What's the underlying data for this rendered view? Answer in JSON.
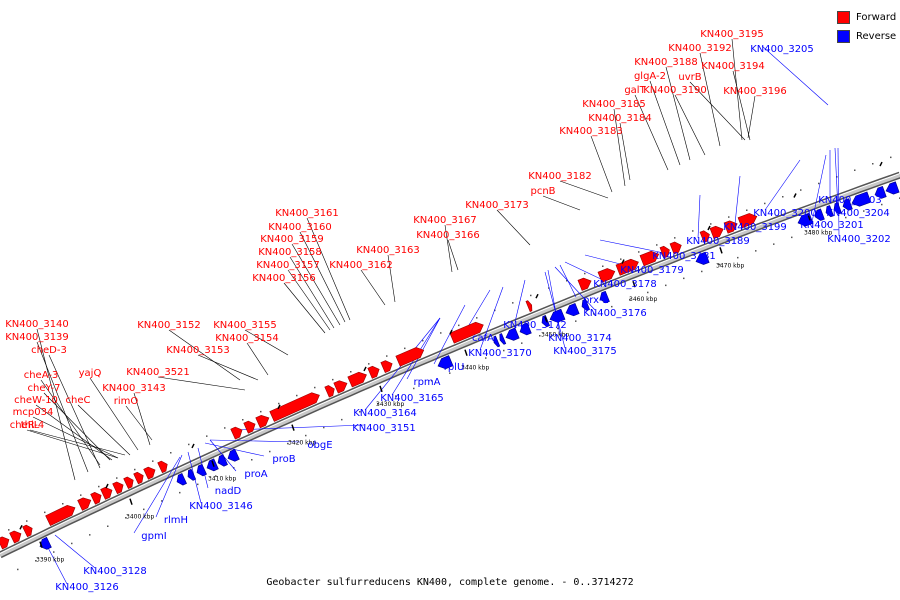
{
  "legend": [
    {
      "label": "Forward",
      "color": "#ff0000"
    },
    {
      "label": "Reverse",
      "color": "#0000ff"
    }
  ],
  "caption": "Geobacter sulfurreducens KN400, complete genome. - 0..3714272",
  "colors": {
    "forward": "#ff0000",
    "reverse": "#0000ff",
    "backbone": "#888888",
    "leader": "#000000"
  },
  "ticks": [
    "3390 kbp",
    "3400 kbp",
    "3410 kbp",
    "3420 kbp",
    "3430 kbp",
    "3440 kbp",
    "3450 kbp",
    "3460 kbp",
    "3470 kbp",
    "3480 kbp"
  ],
  "forward_labels": [
    "KN400_3195",
    "KN400_3192",
    "KN400_3194",
    "KN400_3188",
    "glgA-2",
    "uvrB",
    "galT",
    "KN400_3190",
    "KN400_3196",
    "KN400_3185",
    "KN400_3184",
    "KN400_3183",
    "KN400_3182",
    "pcnB",
    "KN400_3173",
    "KN400_3161",
    "KN400_3160",
    "KN400_3167",
    "KN400_3159",
    "KN400_3166",
    "KN400_3158",
    "KN400_3163",
    "KN400_3157",
    "KN400_3162",
    "KN400_3156",
    "KN400_3140",
    "KN400_3152",
    "KN400_3155",
    "KN400_3139",
    "KN400_3154",
    "cheD-3",
    "KN400_3153",
    "yajQ",
    "cheA-3",
    "KN400_3521",
    "cheY-7",
    "KN400_3143",
    "cheW-10",
    "mcp034",
    "cheC",
    "rimO",
    "cheR-4",
    "thiL"
  ],
  "reverse_labels": [
    "KN400_3205",
    "KN400_3203",
    "KN400_3200",
    "KN400_3204",
    "KN400_3199",
    "KN400_3201",
    "KN400_3189",
    "KN400_3202",
    "KN400_3181",
    "KN400_3179",
    "KN400_3178",
    "prx-2",
    "KN400_3176",
    "KN400_3172",
    "KN400_3174",
    "cafA",
    "KN400_3175",
    "KN400_3170",
    "rplU",
    "rpmA",
    "KN400_3165",
    "KN400_3164",
    "KN400_3151",
    "obgE",
    "proB",
    "proA",
    "nadD",
    "KN400_3146",
    "rlmH",
    "gpmI",
    "KN400_3128",
    "KN400_3126"
  ]
}
